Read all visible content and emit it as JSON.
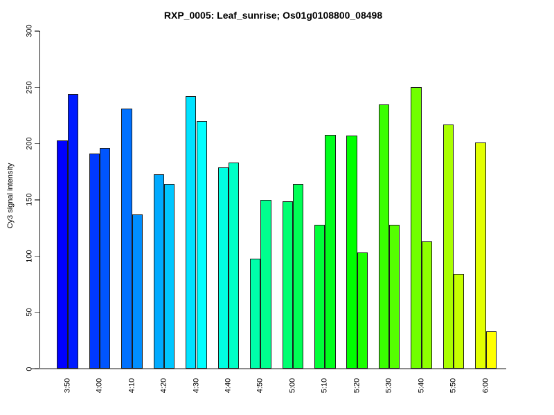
{
  "title": "RXP_0005: Leaf_sunrise; Os01g0108800_08498",
  "chart_data": {
    "type": "bar",
    "title": "RXP_0005: Leaf_sunrise; Os01g0108800_08498",
    "xlabel": "",
    "ylabel": "Cy3 signal intensity",
    "ylim": [
      0,
      300
    ],
    "yticks": [
      0,
      50,
      100,
      150,
      200,
      250,
      300
    ],
    "grid": false,
    "legend": "none",
    "bars_per_group": 2,
    "categories": [
      "3:50",
      "4:00",
      "4:10",
      "4:20",
      "4:30",
      "4:40",
      "4:50",
      "5:00",
      "5:10",
      "5:20",
      "5:30",
      "5:40",
      "5:50",
      "6:00"
    ],
    "groups": [
      {
        "time": "3:50",
        "values": [
          203,
          244
        ],
        "colors": [
          "#0000FF",
          "#001CFF"
        ]
      },
      {
        "time": "4:00",
        "values": [
          191,
          196
        ],
        "colors": [
          "#0039FF",
          "#0055FF"
        ]
      },
      {
        "time": "4:10",
        "values": [
          231,
          137
        ],
        "colors": [
          "#0071FF",
          "#008EFF"
        ]
      },
      {
        "time": "4:20",
        "values": [
          173,
          164
        ],
        "colors": [
          "#00AAFF",
          "#00C6FF"
        ]
      },
      {
        "time": "4:30",
        "values": [
          242,
          220
        ],
        "colors": [
          "#00E2FF",
          "#00FFFF"
        ]
      },
      {
        "time": "4:40",
        "values": [
          179,
          183
        ],
        "colors": [
          "#00FFE2",
          "#00FFC6"
        ]
      },
      {
        "time": "4:50",
        "values": [
          98,
          150
        ],
        "colors": [
          "#00FFAA",
          "#00FF8E"
        ]
      },
      {
        "time": "5:00",
        "values": [
          149,
          164
        ],
        "colors": [
          "#00FF71",
          "#00FF55"
        ]
      },
      {
        "time": "5:10",
        "values": [
          128,
          208
        ],
        "colors": [
          "#00FF39",
          "#00FF1C"
        ]
      },
      {
        "time": "5:20",
        "values": [
          207,
          103
        ],
        "colors": [
          "#00FF00",
          "#1CFF00"
        ]
      },
      {
        "time": "5:30",
        "values": [
          235,
          128
        ],
        "colors": [
          "#39FF00",
          "#55FF00"
        ]
      },
      {
        "time": "5:40",
        "values": [
          250,
          113
        ],
        "colors": [
          "#71FF00",
          "#8EFF00"
        ]
      },
      {
        "time": "5:50",
        "values": [
          217,
          84
        ],
        "colors": [
          "#AAFF00",
          "#C6FF00"
        ]
      },
      {
        "time": "6:00",
        "values": [
          201,
          33
        ],
        "colors": [
          "#E2FF00",
          "#FFFF00"
        ]
      }
    ],
    "colors": {
      "background": "#ffffff",
      "text": "#000000",
      "y_axis_line": "#1f1f1f",
      "x_baseline": "#8a8a8a",
      "bar_border": "#1b1b1b"
    }
  }
}
